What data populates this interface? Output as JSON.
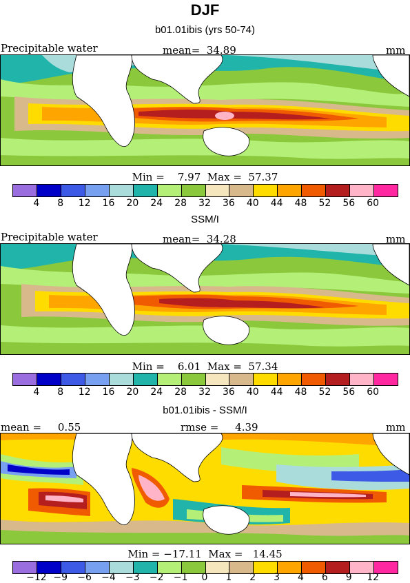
{
  "title": "DJF",
  "colorbar_colors": [
    "#9b6ee0",
    "#0000c8",
    "#3c5ae6",
    "#78a0f0",
    "#aadcdc",
    "#20b4aa",
    "#b4f078",
    "#8cc83c",
    "#f5e6be",
    "#d7b98c",
    "#ffdc00",
    "#ffa500",
    "#f05a00",
    "#b41e1e",
    "#ffb4c8",
    "#ff28a0"
  ],
  "panels": [
    {
      "heading": "b01.01ibis (yrs 50-74)",
      "left_label": "Precipitable water",
      "center_label": "mean=  34.89",
      "unit": "mm",
      "min_max": "Min =    7.97  Max =  57.37",
      "ticks": [
        "4",
        "8",
        "12",
        "16",
        "20",
        "24",
        "28",
        "32",
        "36",
        "40",
        "44",
        "48",
        "52",
        "56",
        "60"
      ]
    },
    {
      "heading": "SSM/I",
      "left_label": "Precipitable water",
      "center_label": "mean=  34.28",
      "unit": "mm",
      "min_max": "Min =    6.01  Max =  57.34",
      "ticks": [
        "4",
        "8",
        "12",
        "16",
        "20",
        "24",
        "28",
        "32",
        "36",
        "40",
        "44",
        "48",
        "52",
        "56",
        "60"
      ]
    },
    {
      "heading": "b01.01ibis - SSM/I",
      "left_label": "mean =     0.55",
      "center_label": "rmse =     4.39",
      "unit": "mm",
      "min_max": "Min = −17.11  Max =   14.45",
      "ticks": [
        "−12",
        "−9",
        "−6",
        "−4",
        "−3",
        "−2",
        "−1",
        "0",
        "1",
        "2",
        "3",
        "4",
        "6",
        "9",
        "12"
      ]
    }
  ]
}
